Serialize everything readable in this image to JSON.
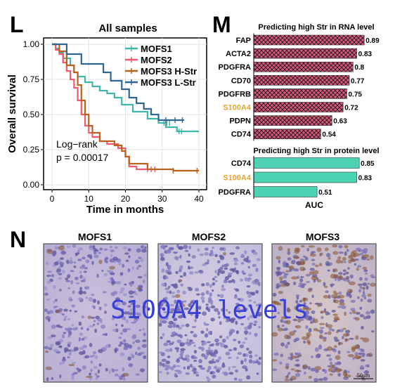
{
  "panel_L": {
    "letter": "L",
    "title": "All samples",
    "xlabel": "Time in months",
    "ylabel": "Overall survival",
    "stat_line1": "Log−rank",
    "stat_line2": "p = 0.00017",
    "xticks": [
      "0",
      "10",
      "20",
      "30",
      "40"
    ],
    "yticks": [
      "0.00",
      "0.25",
      "0.50",
      "0.75",
      "1.00"
    ]
  },
  "panel_M": {
    "letter": "M",
    "rna_title": "Predicting high Str in RNA level",
    "protein_title": "Predicting high Str in protein level",
    "xlabel": "AUC"
  },
  "panel_N": {
    "letter": "N",
    "overlay_text": "S100A4 levels",
    "scale_label": "50μm",
    "images": [
      {
        "title": "MOFS1"
      },
      {
        "title": "MOFS2"
      },
      {
        "title": "MOFS3"
      }
    ]
  },
  "colors": {
    "MOFS1": "#3fb6a8",
    "MOFS2": "#ef5a6f",
    "MOFS3_H": "#b8621b",
    "MOFS3_L": "#33668f",
    "rna_bar": "#e2557a",
    "protein_bar": "#4cd3b4",
    "highlight_label": "#e8a32a",
    "overlay": "#3a3fd8"
  },
  "chart_data": [
    {
      "type": "line",
      "title": "All samples",
      "xlabel": "Time in months",
      "ylabel": "Overall survival",
      "xlim": [
        0,
        40
      ],
      "ylim": [
        0,
        1
      ],
      "legend": "top-right",
      "series": [
        {
          "name": "MOFS1",
          "color": "#3fb6a8",
          "x": [
            0,
            1,
            2,
            3,
            5,
            6,
            7,
            9,
            11,
            13,
            15,
            17,
            19,
            22,
            26,
            29,
            31,
            34,
            40
          ],
          "y": [
            1.0,
            0.97,
            0.94,
            0.9,
            0.85,
            0.8,
            0.77,
            0.73,
            0.7,
            0.67,
            0.65,
            0.62,
            0.57,
            0.52,
            0.47,
            0.44,
            0.41,
            0.38,
            0.38
          ],
          "censor_x": [
            30.5,
            31.3,
            32.0,
            34.6,
            35.3
          ],
          "censor_y": [
            0.44,
            0.44,
            0.44,
            0.38,
            0.38
          ]
        },
        {
          "name": "MOFS2",
          "color": "#ef5a6f",
          "x": [
            0,
            1,
            2,
            3,
            4,
            5,
            6,
            7,
            8,
            9,
            10,
            11,
            13,
            15,
            18,
            20,
            21,
            23,
            26,
            28
          ],
          "y": [
            1.0,
            0.96,
            0.93,
            0.87,
            0.81,
            0.75,
            0.69,
            0.6,
            0.5,
            0.42,
            0.37,
            0.34,
            0.31,
            0.29,
            0.26,
            0.2,
            0.13,
            0.11,
            0.11,
            0.11
          ],
          "censor_x": [
            26.0,
            27.0,
            28.0
          ],
          "censor_y": [
            0.11,
            0.11,
            0.11
          ]
        },
        {
          "name": "MOFS3 H-Str",
          "color": "#b8621b",
          "x": [
            0,
            2,
            4,
            6,
            7,
            8,
            9,
            10,
            11,
            13,
            15,
            17,
            19,
            20,
            21,
            26,
            33,
            40
          ],
          "y": [
            1.0,
            0.95,
            0.85,
            0.8,
            0.71,
            0.6,
            0.5,
            0.42,
            0.37,
            0.31,
            0.31,
            0.28,
            0.24,
            0.2,
            0.15,
            0.11,
            0.1,
            0.1
          ],
          "censor_x": [
            33.0,
            39.5
          ],
          "censor_y": [
            0.1,
            0.1
          ]
        },
        {
          "name": "MOFS3 L-Str",
          "color": "#33668f",
          "x": [
            0,
            4,
            8,
            11,
            14,
            16,
            19,
            21,
            23,
            25,
            27,
            29,
            36
          ],
          "y": [
            1.0,
            0.93,
            0.86,
            0.86,
            0.8,
            0.74,
            0.68,
            0.62,
            0.58,
            0.54,
            0.5,
            0.46,
            0.46
          ],
          "censor_x": [
            31.0,
            33.5,
            35.5
          ],
          "censor_y": [
            0.46,
            0.46,
            0.46
          ]
        }
      ],
      "annotations": [
        "Log−rank",
        "p = 0.00017"
      ]
    },
    {
      "type": "bar",
      "orientation": "horizontal",
      "title": "Predicting high Str in RNA level",
      "categories": [
        "FAP",
        "ACTA2",
        "PDGFRA",
        "CD70",
        "PDGFRB",
        "S100A4",
        "PDPN",
        "CD74"
      ],
      "values": [
        0.89,
        0.83,
        0.8,
        0.77,
        0.75,
        0.72,
        0.63,
        0.54
      ],
      "value_labels": [
        "0.89",
        "0.83",
        "0.8",
        "0.77",
        "0.75",
        "0.72",
        "0.63",
        "0.54"
      ],
      "highlight": [
        "S100A4"
      ],
      "xlim": [
        0,
        0.9
      ]
    },
    {
      "type": "bar",
      "orientation": "horizontal",
      "title": "Predicting high Str in protein level",
      "categories": [
        "CD74",
        "S100A4",
        "PDGFRA"
      ],
      "values": [
        0.85,
        0.83,
        0.51
      ],
      "value_labels": [
        "0.85",
        "0.83",
        "0.51"
      ],
      "highlight": [
        "S100A4"
      ],
      "xlabel": "AUC",
      "xlim": [
        0,
        0.9
      ]
    }
  ]
}
